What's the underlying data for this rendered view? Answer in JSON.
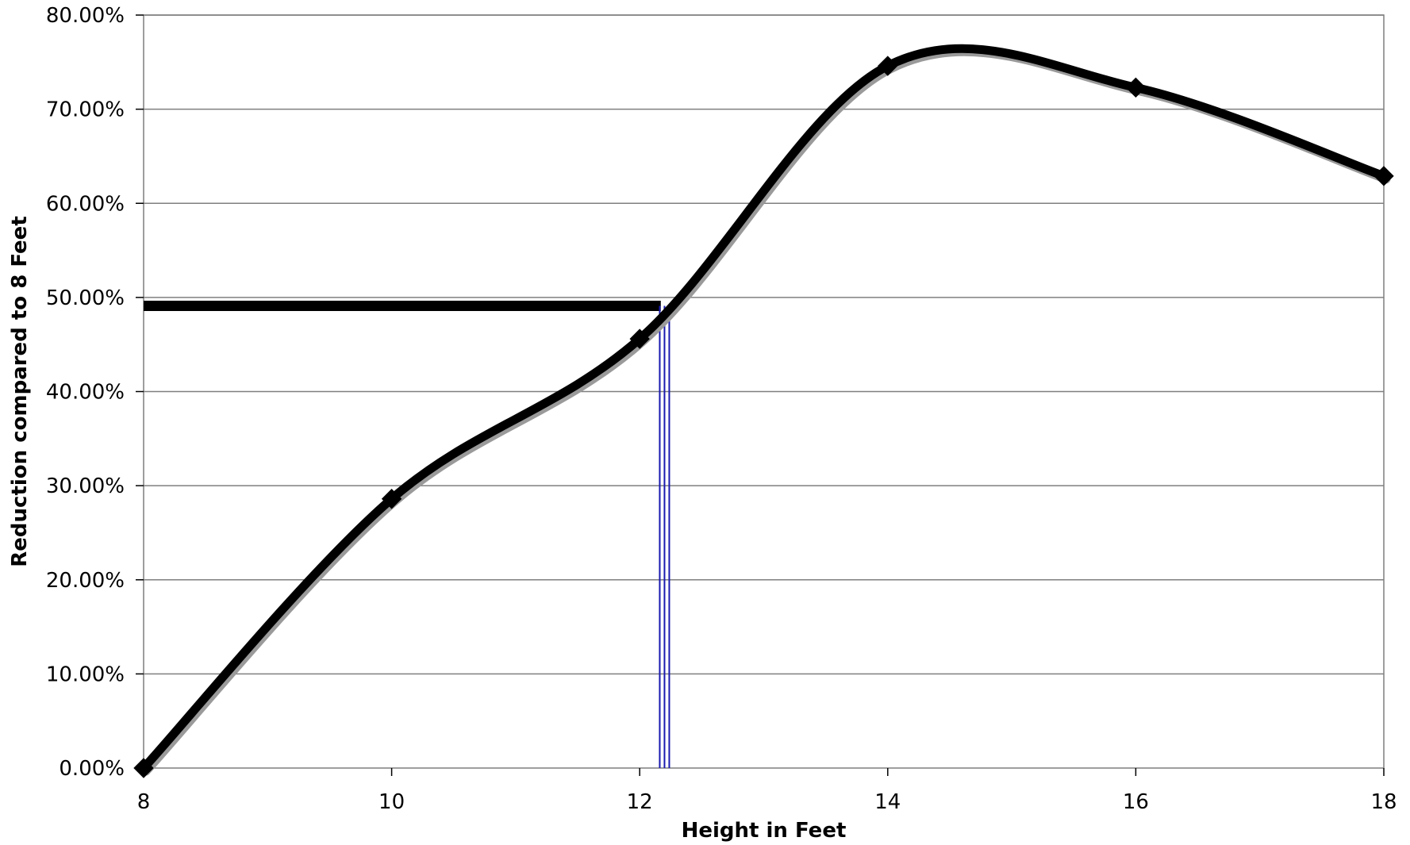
{
  "chart_data": {
    "type": "line",
    "title": "",
    "xlabel": "Height in Feet",
    "ylabel": "Reduction compared to 8 Feet",
    "xlim": [
      8,
      18
    ],
    "ylim": [
      0,
      80
    ],
    "x_ticks": [
      8,
      10,
      12,
      14,
      16,
      18
    ],
    "x_tick_labels": [
      "8",
      "10",
      "12",
      "14",
      "16",
      "18"
    ],
    "y_ticks": [
      0,
      10,
      20,
      30,
      40,
      50,
      60,
      70,
      80
    ],
    "y_tick_labels": [
      "0.00%",
      "10.00%",
      "20.00%",
      "30.00%",
      "40.00%",
      "50.00%",
      "60.00%",
      "70.00%",
      "80.00%"
    ],
    "grid": "horizontal",
    "line_style": "smoothed",
    "marker": "diamond",
    "series": [
      {
        "x": [
          8,
          10,
          12,
          14,
          16,
          18
        ],
        "y": [
          0.0,
          28.6,
          45.6,
          74.6,
          72.3,
          62.9
        ],
        "color": "#000000"
      }
    ],
    "annotations": {
      "horizontal_reference": {
        "y": 49.1,
        "x_from": 8,
        "x_to": 12.17,
        "color": "#000000"
      },
      "vertical_reference": {
        "x": 12.2,
        "y_from": 0,
        "y_to": 49.1,
        "color": "#1a1ab0"
      }
    },
    "colors": {
      "line": "#000000",
      "shadow": "#9a9a9a",
      "grid": "#7f7f7f",
      "reference_vertical": "#1a1ab0"
    }
  }
}
